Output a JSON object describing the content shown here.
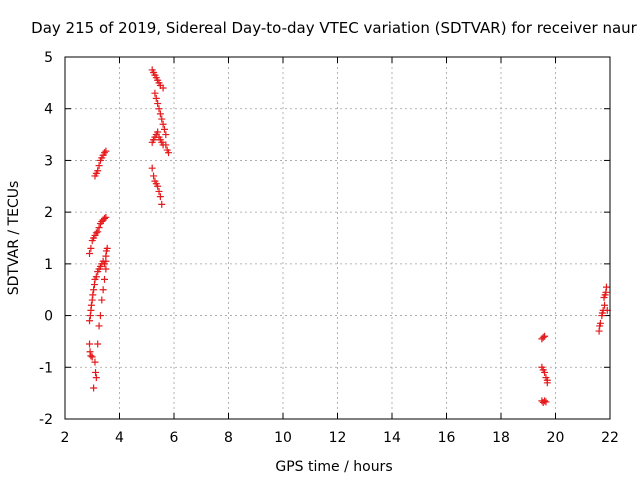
{
  "chart_data": {
    "type": "scatter",
    "title": "Day 215 of 2019, Sidereal Day-to-day VTEC variation (SDTVAR) for receiver naur",
    "xlabel": "GPS time / hours",
    "ylabel": "SDTVAR / TECUs",
    "xlim": [
      2,
      22
    ],
    "ylim": [
      -2,
      5
    ],
    "xticks": [
      2,
      4,
      6,
      8,
      10,
      12,
      14,
      16,
      18,
      20,
      22
    ],
    "yticks": [
      -2,
      -1,
      0,
      1,
      2,
      3,
      4,
      5
    ],
    "grid": true,
    "marker": "+",
    "colors": {
      "points": "#e41a1c"
    },
    "series": [
      {
        "name": "SDTVAR",
        "points": [
          [
            2.9,
            1.2
          ],
          [
            2.95,
            1.3
          ],
          [
            3.0,
            1.45
          ],
          [
            3.05,
            1.5
          ],
          [
            3.1,
            1.55
          ],
          [
            3.15,
            1.6
          ],
          [
            3.2,
            1.62
          ],
          [
            3.25,
            1.7
          ],
          [
            3.3,
            1.78
          ],
          [
            3.35,
            1.82
          ],
          [
            3.4,
            1.85
          ],
          [
            3.45,
            1.88
          ],
          [
            3.5,
            1.9
          ],
          [
            3.1,
            2.7
          ],
          [
            3.15,
            2.75
          ],
          [
            3.2,
            2.8
          ],
          [
            3.25,
            2.9
          ],
          [
            3.3,
            3.0
          ],
          [
            3.35,
            3.05
          ],
          [
            3.4,
            3.1
          ],
          [
            3.45,
            3.15
          ],
          [
            3.5,
            3.18
          ],
          [
            2.9,
            -0.55
          ],
          [
            2.92,
            -0.7
          ],
          [
            2.95,
            -0.78
          ],
          [
            3.0,
            -0.8
          ],
          [
            2.9,
            -0.1
          ],
          [
            2.93,
            0.0
          ],
          [
            2.95,
            0.1
          ],
          [
            2.97,
            0.2
          ],
          [
            3.0,
            0.3
          ],
          [
            3.02,
            0.4
          ],
          [
            3.05,
            0.5
          ],
          [
            3.08,
            0.6
          ],
          [
            3.1,
            0.7
          ],
          [
            3.15,
            0.75
          ],
          [
            3.2,
            0.85
          ],
          [
            3.25,
            0.9
          ],
          [
            3.3,
            0.95
          ],
          [
            3.35,
            1.0
          ],
          [
            3.4,
            1.05
          ],
          [
            3.45,
            1.0
          ],
          [
            3.5,
            1.05
          ],
          [
            3.1,
            -0.9
          ],
          [
            3.12,
            -1.1
          ],
          [
            3.15,
            -1.2
          ],
          [
            3.05,
            -1.4
          ],
          [
            3.2,
            -0.55
          ],
          [
            3.25,
            -0.2
          ],
          [
            3.3,
            0.0
          ],
          [
            3.35,
            0.3
          ],
          [
            3.4,
            0.5
          ],
          [
            3.45,
            0.7
          ],
          [
            3.5,
            0.9
          ],
          [
            3.5,
            1.15
          ],
          [
            3.52,
            1.25
          ],
          [
            3.55,
            1.3
          ],
          [
            5.2,
            4.75
          ],
          [
            5.25,
            4.7
          ],
          [
            5.3,
            4.65
          ],
          [
            5.35,
            4.6
          ],
          [
            5.4,
            4.55
          ],
          [
            5.45,
            4.5
          ],
          [
            5.5,
            4.45
          ],
          [
            5.6,
            4.4
          ],
          [
            5.3,
            4.3
          ],
          [
            5.35,
            4.2
          ],
          [
            5.4,
            4.1
          ],
          [
            5.45,
            4.0
          ],
          [
            5.5,
            3.9
          ],
          [
            5.55,
            3.8
          ],
          [
            5.6,
            3.7
          ],
          [
            5.65,
            3.6
          ],
          [
            5.7,
            3.5
          ],
          [
            5.7,
            3.3
          ],
          [
            5.75,
            3.2
          ],
          [
            5.8,
            3.15
          ],
          [
            5.2,
            3.35
          ],
          [
            5.25,
            3.4
          ],
          [
            5.3,
            3.45
          ],
          [
            5.35,
            3.5
          ],
          [
            5.4,
            3.55
          ],
          [
            5.45,
            3.45
          ],
          [
            5.5,
            3.4
          ],
          [
            5.55,
            3.35
          ],
          [
            5.6,
            3.3
          ],
          [
            5.2,
            2.85
          ],
          [
            5.25,
            2.7
          ],
          [
            5.3,
            2.6
          ],
          [
            5.35,
            2.55
          ],
          [
            5.4,
            2.5
          ],
          [
            5.45,
            2.4
          ],
          [
            5.5,
            2.3
          ],
          [
            5.55,
            2.15
          ],
          [
            19.5,
            -0.45
          ],
          [
            19.55,
            -0.42
          ],
          [
            19.6,
            -0.4
          ],
          [
            19.5,
            -1.0
          ],
          [
            19.55,
            -1.05
          ],
          [
            19.6,
            -1.1
          ],
          [
            19.65,
            -1.2
          ],
          [
            19.7,
            -1.25
          ],
          [
            19.7,
            -1.3
          ],
          [
            19.5,
            -1.65
          ],
          [
            19.55,
            -1.68
          ],
          [
            19.6,
            -1.65
          ],
          [
            19.65,
            -1.67
          ],
          [
            21.6,
            -0.3
          ],
          [
            21.62,
            -0.2
          ],
          [
            21.65,
            -0.15
          ],
          [
            21.7,
            0.0
          ],
          [
            21.72,
            0.05
          ],
          [
            21.75,
            0.1
          ],
          [
            21.8,
            0.2
          ],
          [
            21.78,
            0.35
          ],
          [
            21.82,
            0.4
          ],
          [
            21.85,
            0.45
          ],
          [
            21.87,
            0.55
          ],
          [
            21.9,
            0.1
          ]
        ]
      }
    ]
  }
}
